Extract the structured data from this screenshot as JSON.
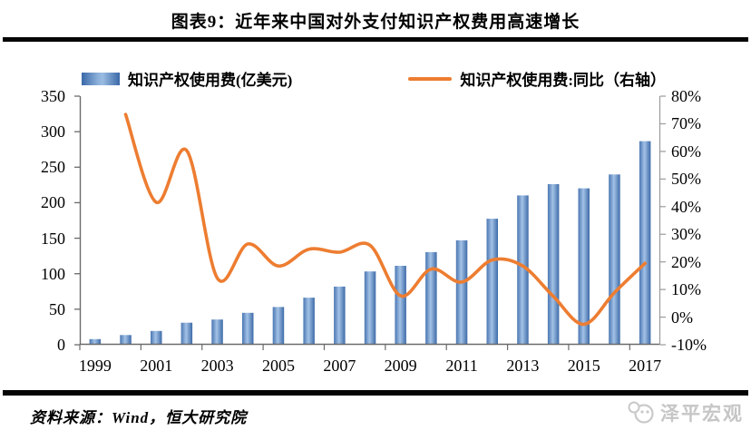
{
  "title": "图表9：近年来中国对外支付知识产权费用高速增长",
  "legend": [
    {
      "label": "知识产权使用费(亿美元)",
      "type": "bar",
      "color": "#4f81bd"
    },
    {
      "label": "知识产权使用费:同比（右轴）",
      "type": "line",
      "color": "#ed7d31"
    }
  ],
  "footer": {
    "source": "资料来源：Wind，恒大研究院",
    "watermark": "泽平宏观"
  },
  "chart_data": {
    "type": "bar+line",
    "title": "图表9：近年来中国对外支付知识产权费用高速增长",
    "categories": [
      1999,
      2000,
      2001,
      2002,
      2003,
      2004,
      2005,
      2006,
      2007,
      2008,
      2009,
      2010,
      2011,
      2012,
      2013,
      2014,
      2015,
      2016,
      2017
    ],
    "x_tick_labels": [
      "1999",
      "2001",
      "2003",
      "2005",
      "2007",
      "2009",
      "2011",
      "2013",
      "2015",
      "2017"
    ],
    "series": [
      {
        "name": "知识产权使用费(亿美元)",
        "type": "bar",
        "axis": "left",
        "color": "#4f81bd",
        "gradient": [
          "#4a76b2",
          "#a3c2e6",
          "#3d6ba8"
        ],
        "values": [
          7.9,
          13.7,
          19.4,
          31.1,
          35.5,
          44.9,
          53.2,
          66.3,
          81.9,
          103.2,
          111.1,
          130.4,
          147.0,
          177.4,
          210.3,
          226.1,
          220.2,
          239.8,
          286.6
        ]
      },
      {
        "name": "知识产权使用费:同比（右轴）",
        "type": "line",
        "axis": "right",
        "color": "#ed7d31",
        "values": [
          null,
          73.4,
          41.6,
          60.3,
          14.1,
          26.5,
          18.5,
          24.6,
          23.5,
          26.0,
          7.7,
          17.4,
          12.7,
          20.7,
          18.5,
          7.5,
          -2.6,
          8.9,
          19.5
        ]
      }
    ],
    "left_axis": {
      "min": 0,
      "max": 350,
      "step": 50,
      "unit": "亿美元",
      "ticks": [
        "350",
        "300",
        "250",
        "200",
        "150",
        "100",
        "50",
        "0"
      ]
    },
    "right_axis": {
      "min": -10,
      "max": 80,
      "step": 10,
      "unit": "%",
      "ticks": [
        "80%",
        "70%",
        "60%",
        "50%",
        "40%",
        "30%",
        "20%",
        "10%",
        "0%",
        "-10%"
      ]
    },
    "grid": false,
    "legend_position": "top"
  }
}
